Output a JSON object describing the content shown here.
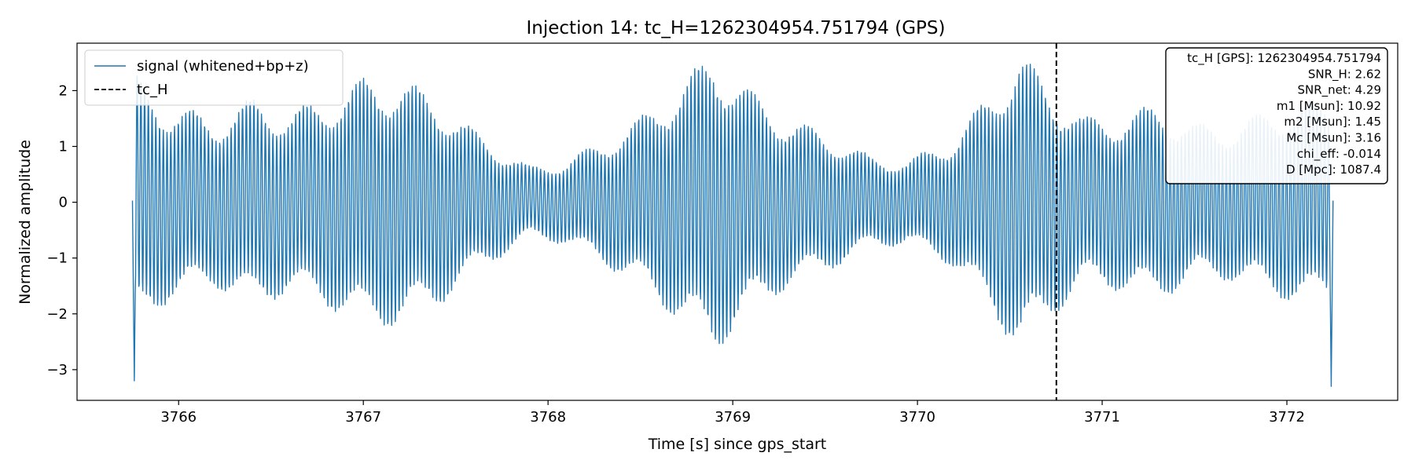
{
  "chart_data": {
    "type": "line",
    "title": "Injection 14: tc_H=1262304954.751794 (GPS)",
    "xlabel": "Time [s] since gps_start",
    "ylabel": "Normalized amplitude",
    "xlim": [
      3765.45,
      3772.6
    ],
    "ylim": [
      -3.55,
      2.85
    ],
    "xticks": [
      3766,
      3767,
      3768,
      3769,
      3770,
      3771,
      3772
    ],
    "yticks": [
      -3,
      -2,
      -1,
      0,
      1,
      2
    ],
    "ytick_labels": [
      "−3",
      "−2",
      "−1",
      "0",
      "1",
      "2"
    ],
    "grid": false,
    "legend_placement": "upper-left",
    "tc_H": 3770.752,
    "series": [
      {
        "name": "signal (whitened+bp+z)",
        "color": "#1f77b4",
        "style": "solid",
        "x_start": 3765.75,
        "x_end": 3772.25,
        "dominant_frequency_hz": 49,
        "envelope": [
          [
            3765.75,
            2.0
          ],
          [
            3765.95,
            1.5
          ],
          [
            3766.2,
            1.3
          ],
          [
            3766.4,
            1.6
          ],
          [
            3766.6,
            1.4
          ],
          [
            3766.8,
            1.6
          ],
          [
            3767.0,
            1.9
          ],
          [
            3767.2,
            1.9
          ],
          [
            3767.4,
            1.6
          ],
          [
            3767.6,
            1.1
          ],
          [
            3767.9,
            0.55
          ],
          [
            3768.1,
            0.65
          ],
          [
            3768.3,
            0.95
          ],
          [
            3768.5,
            1.3
          ],
          [
            3768.7,
            1.8
          ],
          [
            3768.9,
            2.3
          ],
          [
            3769.1,
            1.7
          ],
          [
            3769.3,
            1.3
          ],
          [
            3769.55,
            1.0
          ],
          [
            3769.75,
            0.7
          ],
          [
            3769.95,
            0.65
          ],
          [
            3770.2,
            1.0
          ],
          [
            3770.4,
            1.7
          ],
          [
            3770.55,
            2.3
          ],
          [
            3770.75,
            1.7
          ],
          [
            3770.9,
            1.3
          ],
          [
            3771.1,
            1.35
          ],
          [
            3771.3,
            1.5
          ],
          [
            3771.5,
            1.2
          ],
          [
            3771.7,
            1.2
          ],
          [
            3771.9,
            1.4
          ],
          [
            3772.1,
            1.6
          ],
          [
            3772.25,
            1.5
          ]
        ],
        "first_point": [
          3765.75,
          0.03
        ],
        "min_point": [
          3765.76,
          -3.2
        ],
        "last_point": [
          3772.25,
          0.03
        ],
        "end_dip": [
          3772.24,
          -3.3
        ]
      },
      {
        "name": "tc_H",
        "color": "#000000",
        "style": "dashed",
        "x": 3770.752
      }
    ],
    "info_box": {
      "placement": "top-right",
      "lines": [
        "tc_H [GPS]: 1262304954.751794",
        "SNR_H: 2.62",
        "SNR_net: 4.29",
        "m1 [Msun]: 10.92",
        "m2 [Msun]: 1.45",
        "Mc [Msun]: 3.16",
        "chi_eff: -0.014",
        "D [Mpc]: 1087.4"
      ]
    }
  }
}
